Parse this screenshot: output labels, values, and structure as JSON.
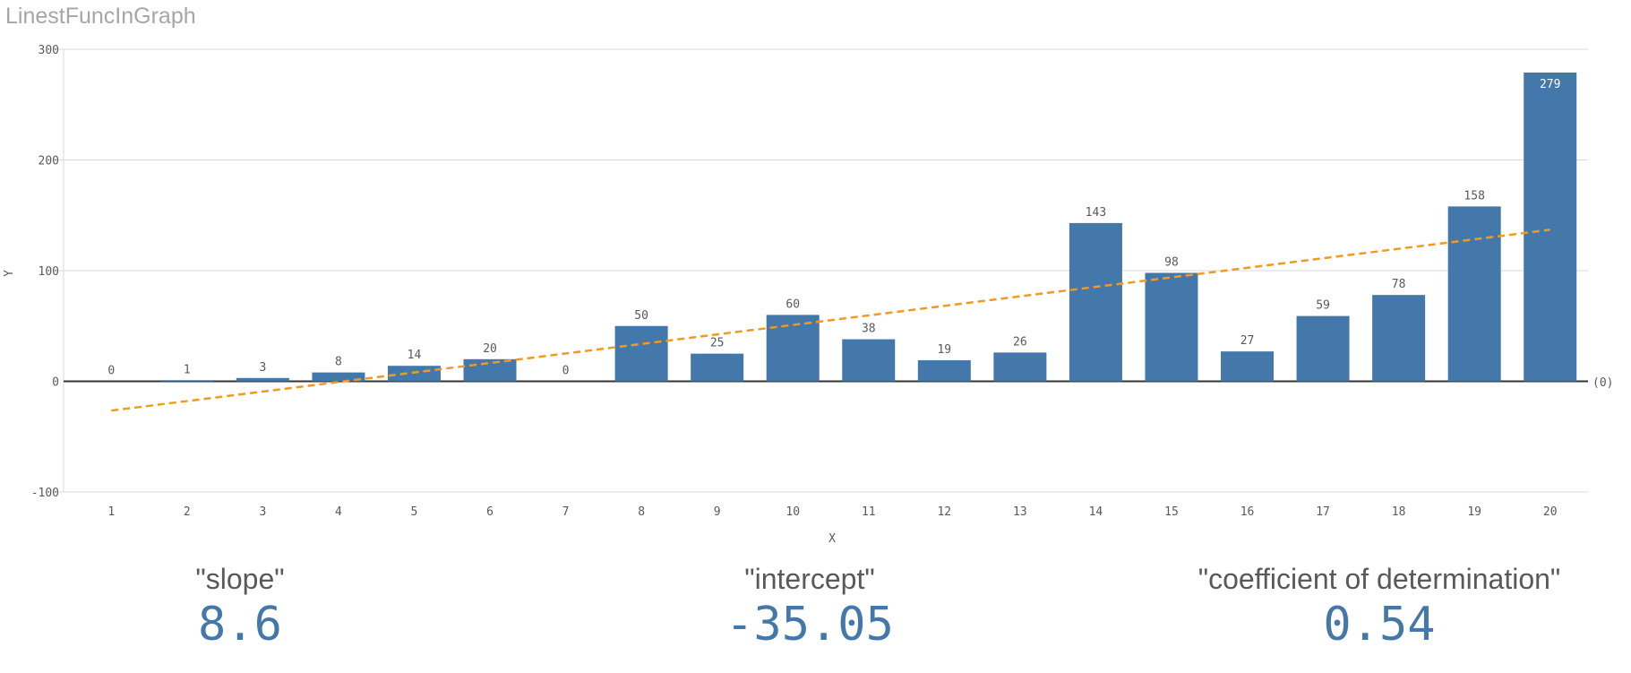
{
  "title": "LinestFuncInGraph",
  "chart_data": {
    "type": "bar",
    "xlabel": "X",
    "ylabel": "Y",
    "ylim": [
      -100,
      300
    ],
    "yticks": [
      -100,
      0,
      100,
      200,
      300
    ],
    "grid": true,
    "categories": [
      "1",
      "2",
      "3",
      "4",
      "5",
      "6",
      "7",
      "8",
      "9",
      "10",
      "11",
      "12",
      "13",
      "14",
      "15",
      "16",
      "17",
      "18",
      "19",
      "20"
    ],
    "values": [
      0,
      1,
      3,
      8,
      14,
      20,
      0,
      50,
      25,
      60,
      38,
      19,
      26,
      143,
      98,
      27,
      59,
      78,
      158,
      279
    ],
    "reference_line_label": "(0)",
    "trendline": {
      "type": "linear",
      "slope": 8.6,
      "intercept": -35.05,
      "style": "dashed"
    },
    "colors": {
      "bar": "#4477aa",
      "trendline": "#f39a1e",
      "grid": "#d9d9d9",
      "zero_line": "#333333"
    }
  },
  "kpis": [
    {
      "label": "\"slope\"",
      "value": "8.6"
    },
    {
      "label": "\"intercept\"",
      "value": "-35.05"
    },
    {
      "label": "\"coefficient of determination\"",
      "value": "0.54"
    }
  ]
}
